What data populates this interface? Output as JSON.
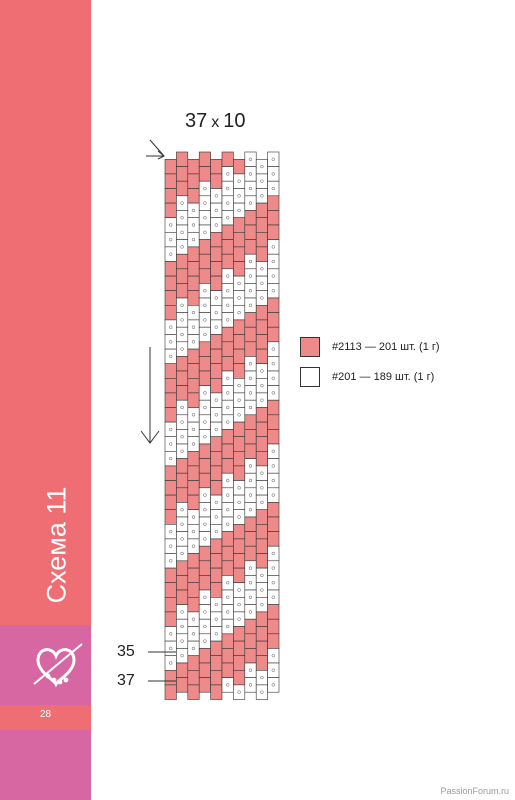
{
  "sidebar": {
    "scheme_title": "Схема 11",
    "page_number": "28"
  },
  "pattern": {
    "dim_width": "37",
    "dim_x": "x",
    "dim_rows": "10",
    "columns": 10,
    "rows": 37,
    "colors": {
      "pink": "#ef8a8a",
      "white": "#ffffff"
    },
    "row_labels": {
      "label_35": "35",
      "label_37": "37"
    },
    "legend": [
      {
        "color": "#ef8a8a",
        "text": "#2113 — 201 шт. (1 г)"
      },
      {
        "color": "#ffffff",
        "text": "#201 — 189 шт. (1 г)"
      }
    ]
  },
  "watermark": "PassionForum.ru"
}
